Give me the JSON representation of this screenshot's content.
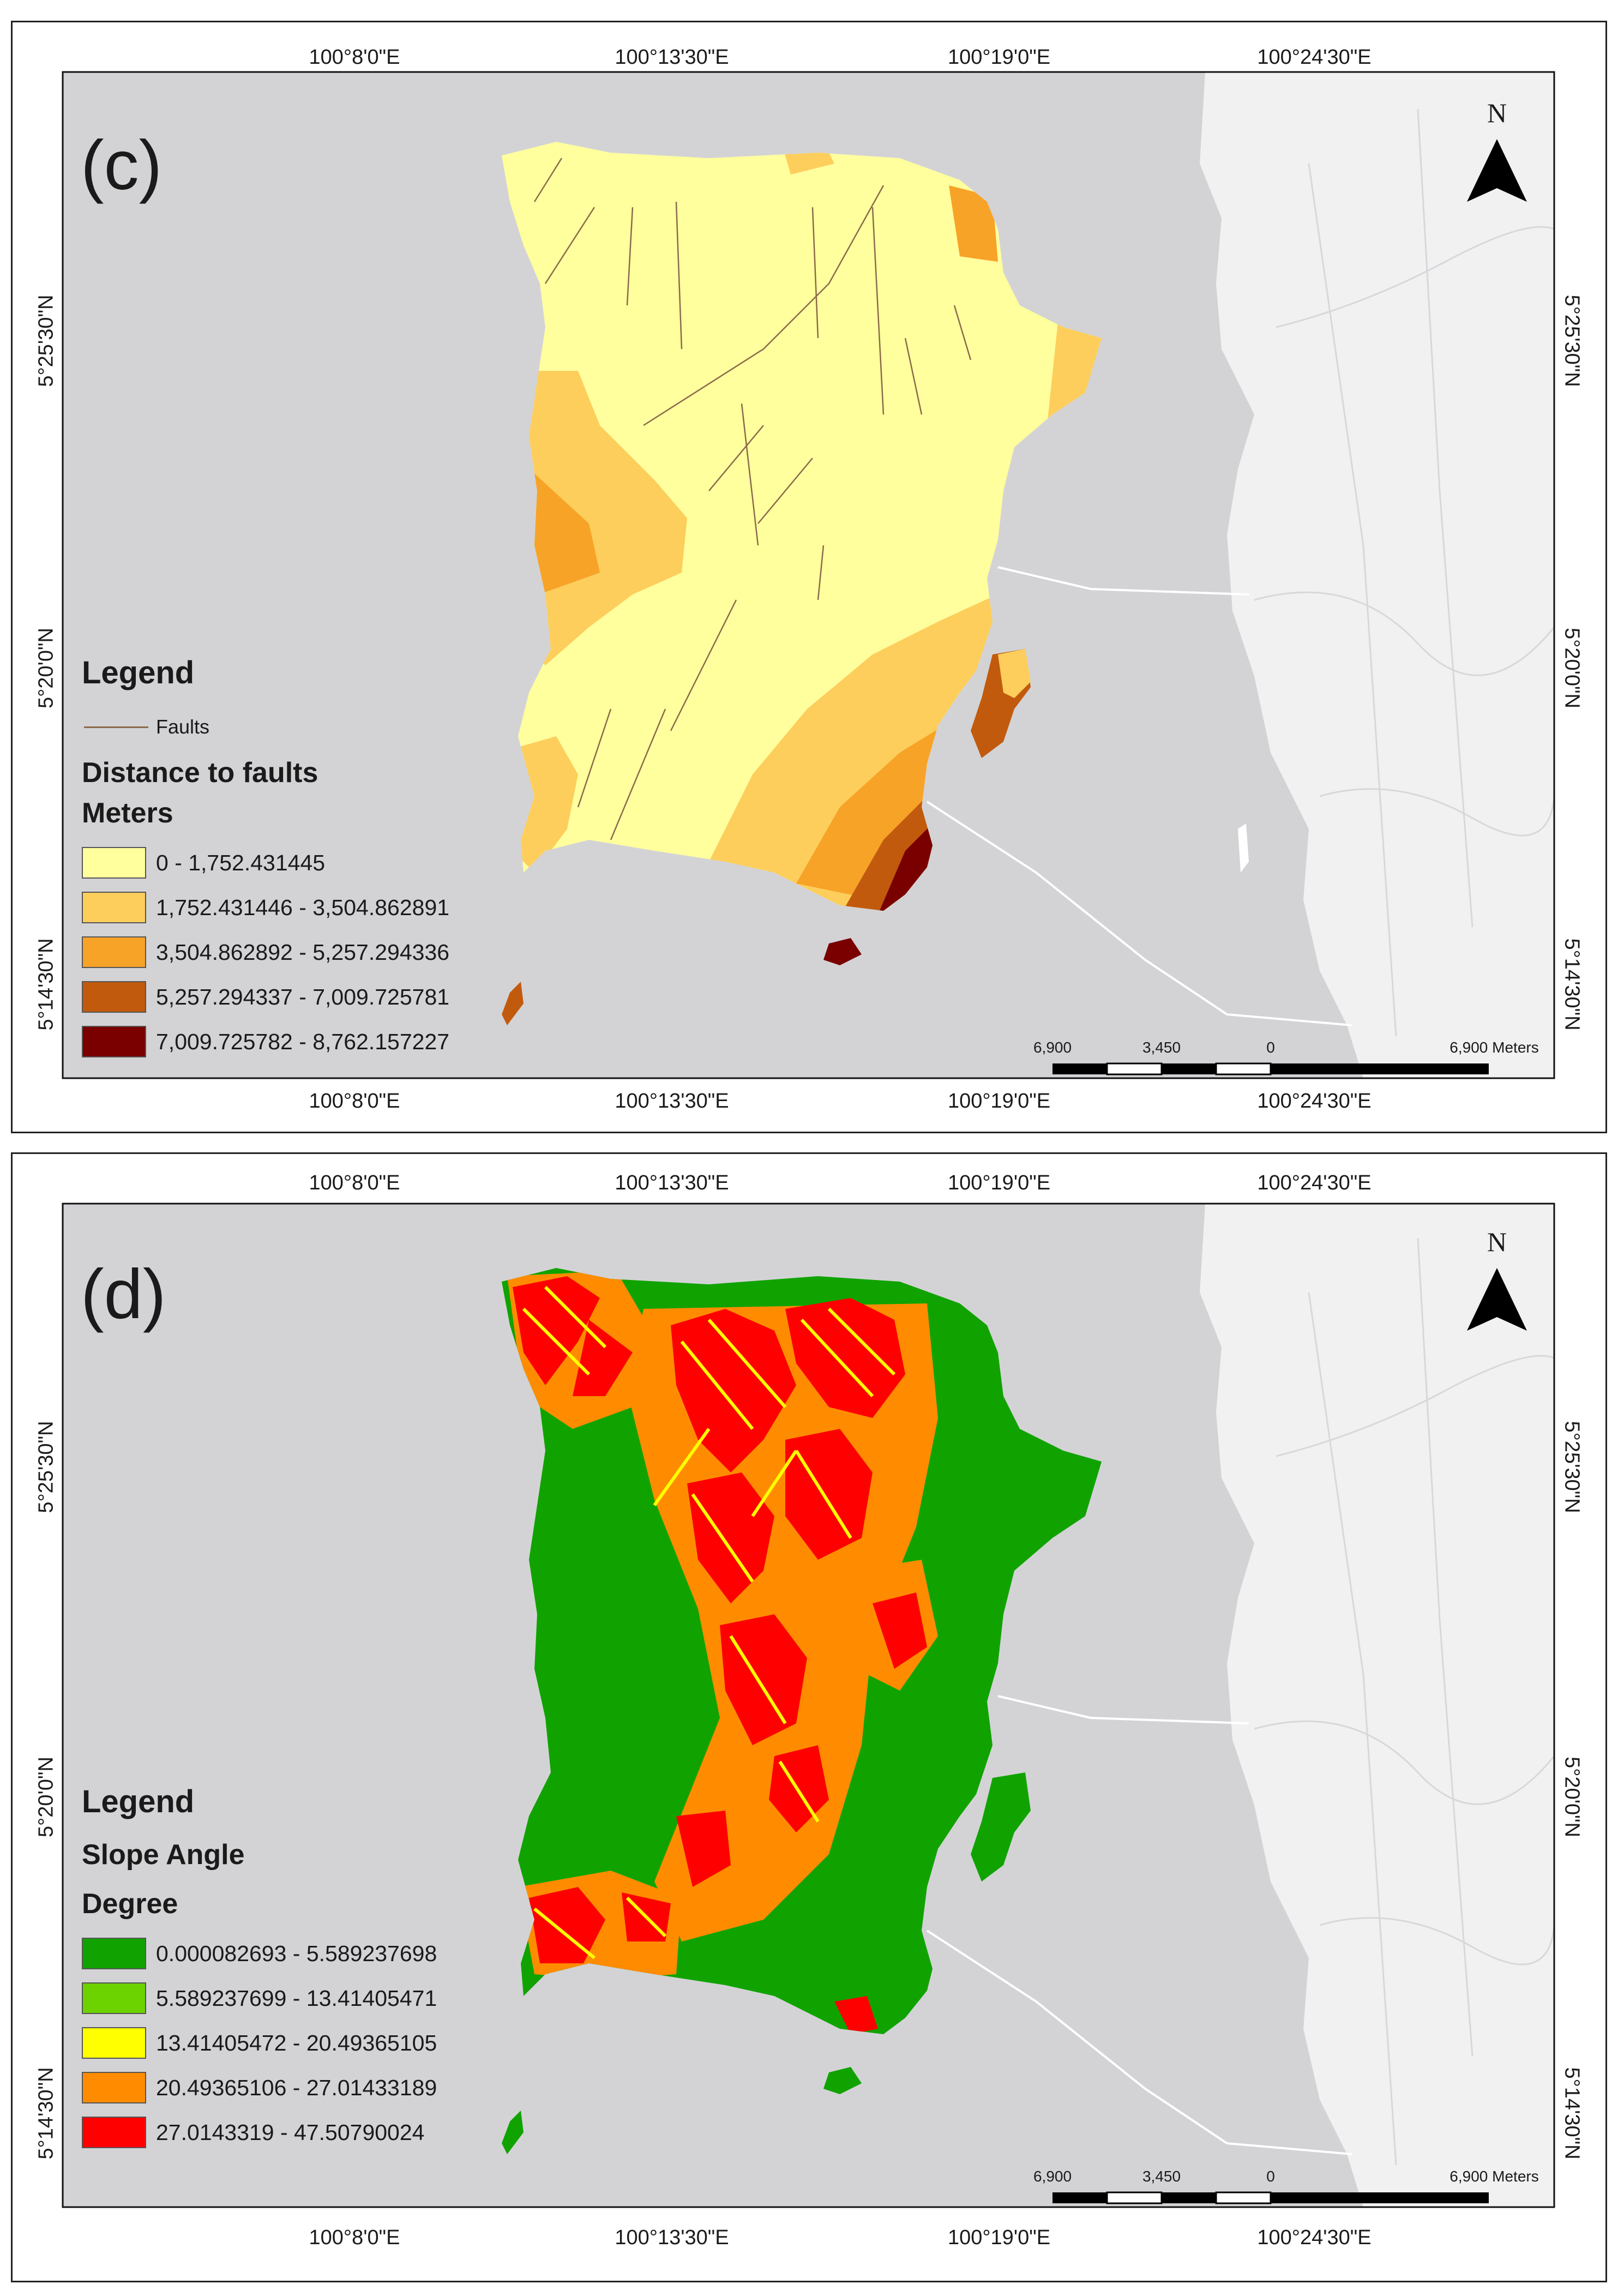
{
  "coordinates": {
    "top_longitudes": [
      "100°8'0\"E",
      "100°13'30\"E",
      "100°19'0\"E",
      "100°24'30\"E"
    ],
    "bottom_longitudes": [
      "100°8'0\"E",
      "100°13'30\"E",
      "100°19'0\"E",
      "100°24'30\"E"
    ],
    "left_latitudes": [
      "5°25'30\"N",
      "5°20'0\"N",
      "5°14'30\"N"
    ],
    "right_latitudes": [
      "5°25'30\"N",
      "5°20'0\"N",
      "5°14'30\"N"
    ]
  },
  "north_arrow_label": "N",
  "scale_bar": {
    "labels": [
      "6,900",
      "3,450",
      "0",
      "6,900 Meters"
    ]
  },
  "panels": [
    {
      "label": "(c)",
      "legend": {
        "title": "Legend",
        "fault_label": "Faults",
        "subtitle": "Distance to faults",
        "unit": "Meters",
        "classes": [
          {
            "label": "0 - 1,752.431445",
            "color": "#ffff9e"
          },
          {
            "label": "1,752.431446 - 3,504.862891",
            "color": "#fdce5c"
          },
          {
            "label": "3,504.862892 - 5,257.294336",
            "color": "#f7a327"
          },
          {
            "label": "5,257.294337 - 7,009.725781",
            "color": "#c25a0e"
          },
          {
            "label": "7,009.725782 - 8,762.157227",
            "color": "#7a0000"
          }
        ]
      }
    },
    {
      "label": "(d)",
      "legend": {
        "title": "Legend",
        "subtitle": "Slope Angle",
        "unit": "Degree",
        "classes": [
          {
            "label": "0.000082693 - 5.589237698",
            "color": "#10a300"
          },
          {
            "label": "5.589237699 - 13.41405471",
            "color": "#6cd200"
          },
          {
            "label": "13.41405472 - 20.49365105",
            "color": "#ffff00"
          },
          {
            "label": "20.49365106 - 27.01433189",
            "color": "#ff8c00"
          },
          {
            "label": "27.0143319 - 47.50790024",
            "color": "#ff0000"
          }
        ]
      }
    }
  ],
  "colors": {
    "sea": "#d3d3d6",
    "mainland": "#f2f2f2",
    "road": "#ffffff"
  }
}
